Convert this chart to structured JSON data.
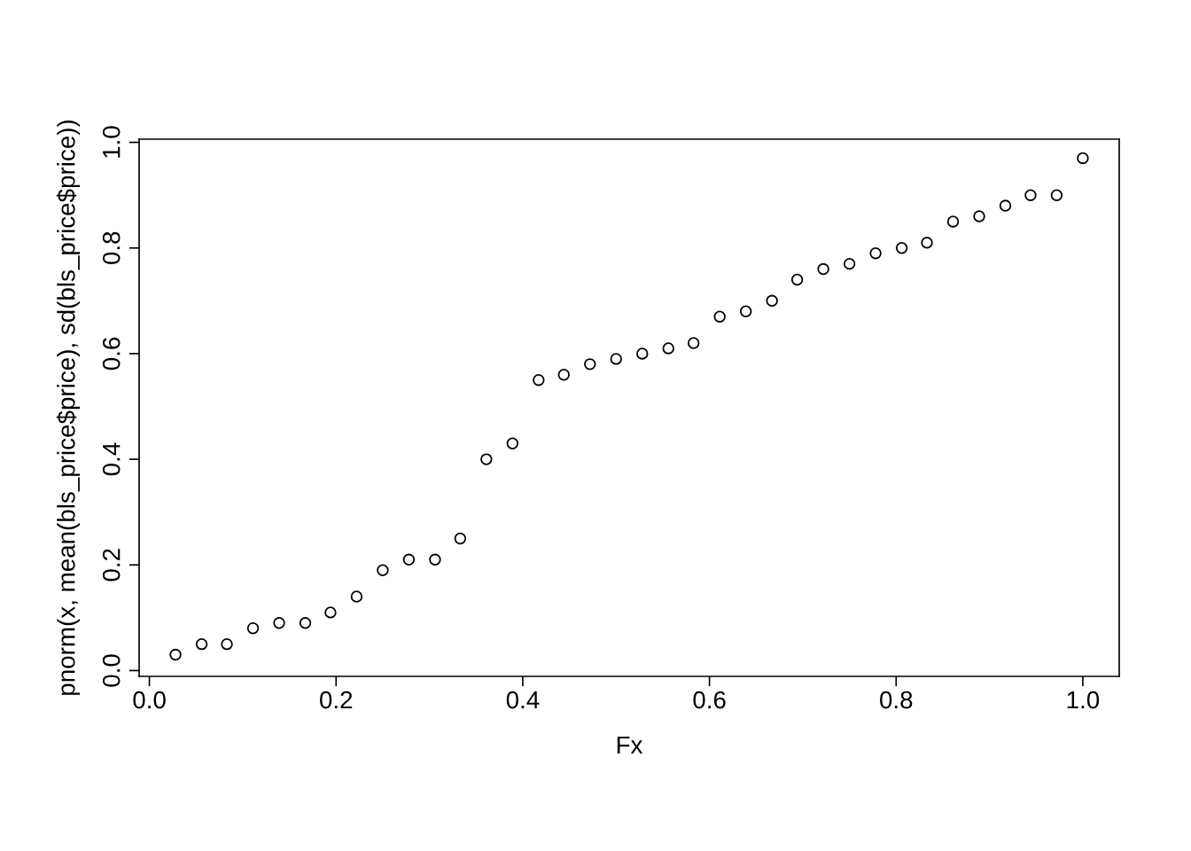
{
  "chart_data": {
    "type": "scatter",
    "xlabel": "Fx",
    "ylabel": "pnorm(x, mean(bls_price$price), sd(bls_price$price))",
    "x": [
      0.028,
      0.056,
      0.083,
      0.111,
      0.139,
      0.167,
      0.194,
      0.222,
      0.25,
      0.278,
      0.306,
      0.333,
      0.361,
      0.389,
      0.417,
      0.444,
      0.472,
      0.5,
      0.528,
      0.556,
      0.583,
      0.611,
      0.639,
      0.667,
      0.694,
      0.722,
      0.75,
      0.778,
      0.806,
      0.833,
      0.861,
      0.889,
      0.917,
      0.944,
      0.972,
      1.0
    ],
    "series": [
      {
        "color": "#000000",
        "values": [
          0.03,
          0.05,
          0.05,
          0.08,
          0.09,
          0.09,
          0.11,
          0.14,
          0.19,
          0.21,
          0.21,
          0.25,
          0.4,
          0.43,
          0.55,
          0.56,
          0.58,
          0.59,
          0.6,
          0.61,
          0.62,
          0.67,
          0.68,
          0.7,
          0.74,
          0.76,
          0.77,
          0.79,
          0.8,
          0.81,
          0.85,
          0.86,
          0.88,
          0.9,
          0.9,
          0.97
        ]
      }
    ],
    "xlim": [
      -0.011,
      1.039
    ],
    "ylim": [
      -0.011,
      1.006
    ],
    "xticks": [
      {
        "value": 0,
        "label": "0.0"
      },
      0.2,
      0.4,
      0.6,
      0.8,
      {
        "value": 1,
        "label": "1.0"
      }
    ],
    "yticks": [
      {
        "value": 0,
        "label": "0.0"
      },
      0.2,
      0.4,
      0.6,
      0.8,
      {
        "value": 1,
        "label": "1.0"
      }
    ],
    "marker": "circle",
    "grid": false,
    "legend": false
  }
}
